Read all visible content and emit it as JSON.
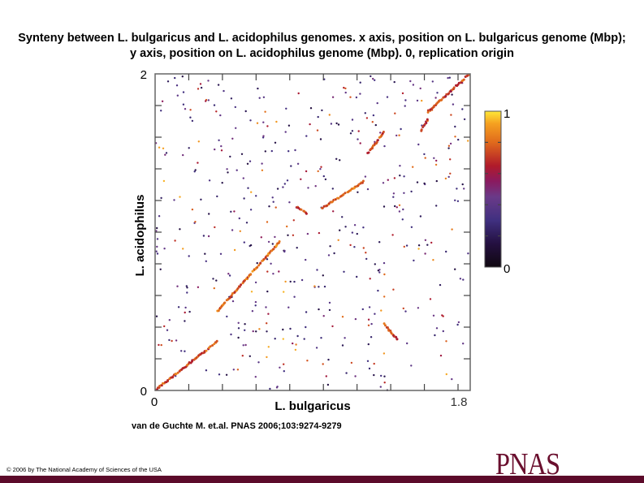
{
  "title": "Synteny between L. bulgaricus and L. acidophilus genomes. x axis, position on L. bulgaricus genome (Mbp); y axis, position on L. acidophilus genome (Mbp). 0, replication origin",
  "citation": "van de Guchte M. et.al. PNAS 2006;103:9274-9279",
  "copyright": "© 2006 by The National Academy of Sciences of the USA",
  "logo": "PNAS",
  "colors": {
    "footer": "#5c0a2a",
    "logo": "#6a0f2e"
  },
  "chart_data": {
    "type": "scatter",
    "title": "Synteny between L. bulgaricus and L. acidophilus genomes",
    "xlabel": "L. bulgaricus",
    "ylabel": "L. acidophilus",
    "xlim": [
      0,
      1.87
    ],
    "ylim": [
      0,
      2
    ],
    "x_tick_labels": [
      "0",
      "1.8"
    ],
    "y_tick_labels": [
      "0",
      "2"
    ],
    "x_tick_step": 0.2,
    "y_tick_step": 0.2,
    "grid": false,
    "colorbar": {
      "min": 0,
      "max": 1,
      "labels": [
        "0",
        "1"
      ],
      "tick_step": 0.2
    },
    "synteny_segments": [
      {
        "x": [
          0.005,
          0.37
        ],
        "y": [
          0.005,
          0.31
        ],
        "value": 0.75
      },
      {
        "x": [
          0.37,
          0.74
        ],
        "y": [
          0.5,
          0.94
        ],
        "value": 0.8
      },
      {
        "x": [
          0.84,
          0.9
        ],
        "y": [
          1.16,
          1.12
        ],
        "value": 0.7
      },
      {
        "x": [
          0.99,
          1.24
        ],
        "y": [
          1.15,
          1.32
        ],
        "value": 0.8
      },
      {
        "x": [
          1.26,
          1.36
        ],
        "y": [
          1.49,
          1.63
        ],
        "value": 0.75
      },
      {
        "x": [
          1.36,
          1.44
        ],
        "y": [
          0.42,
          0.32
        ],
        "value": 0.72
      },
      {
        "x": [
          1.58,
          1.62
        ],
        "y": [
          1.64,
          1.71
        ],
        "value": 0.7
      },
      {
        "x": [
          1.62,
          1.87
        ],
        "y": [
          1.76,
          2.0
        ],
        "value": 0.72
      }
    ],
    "background_points": 480
  }
}
